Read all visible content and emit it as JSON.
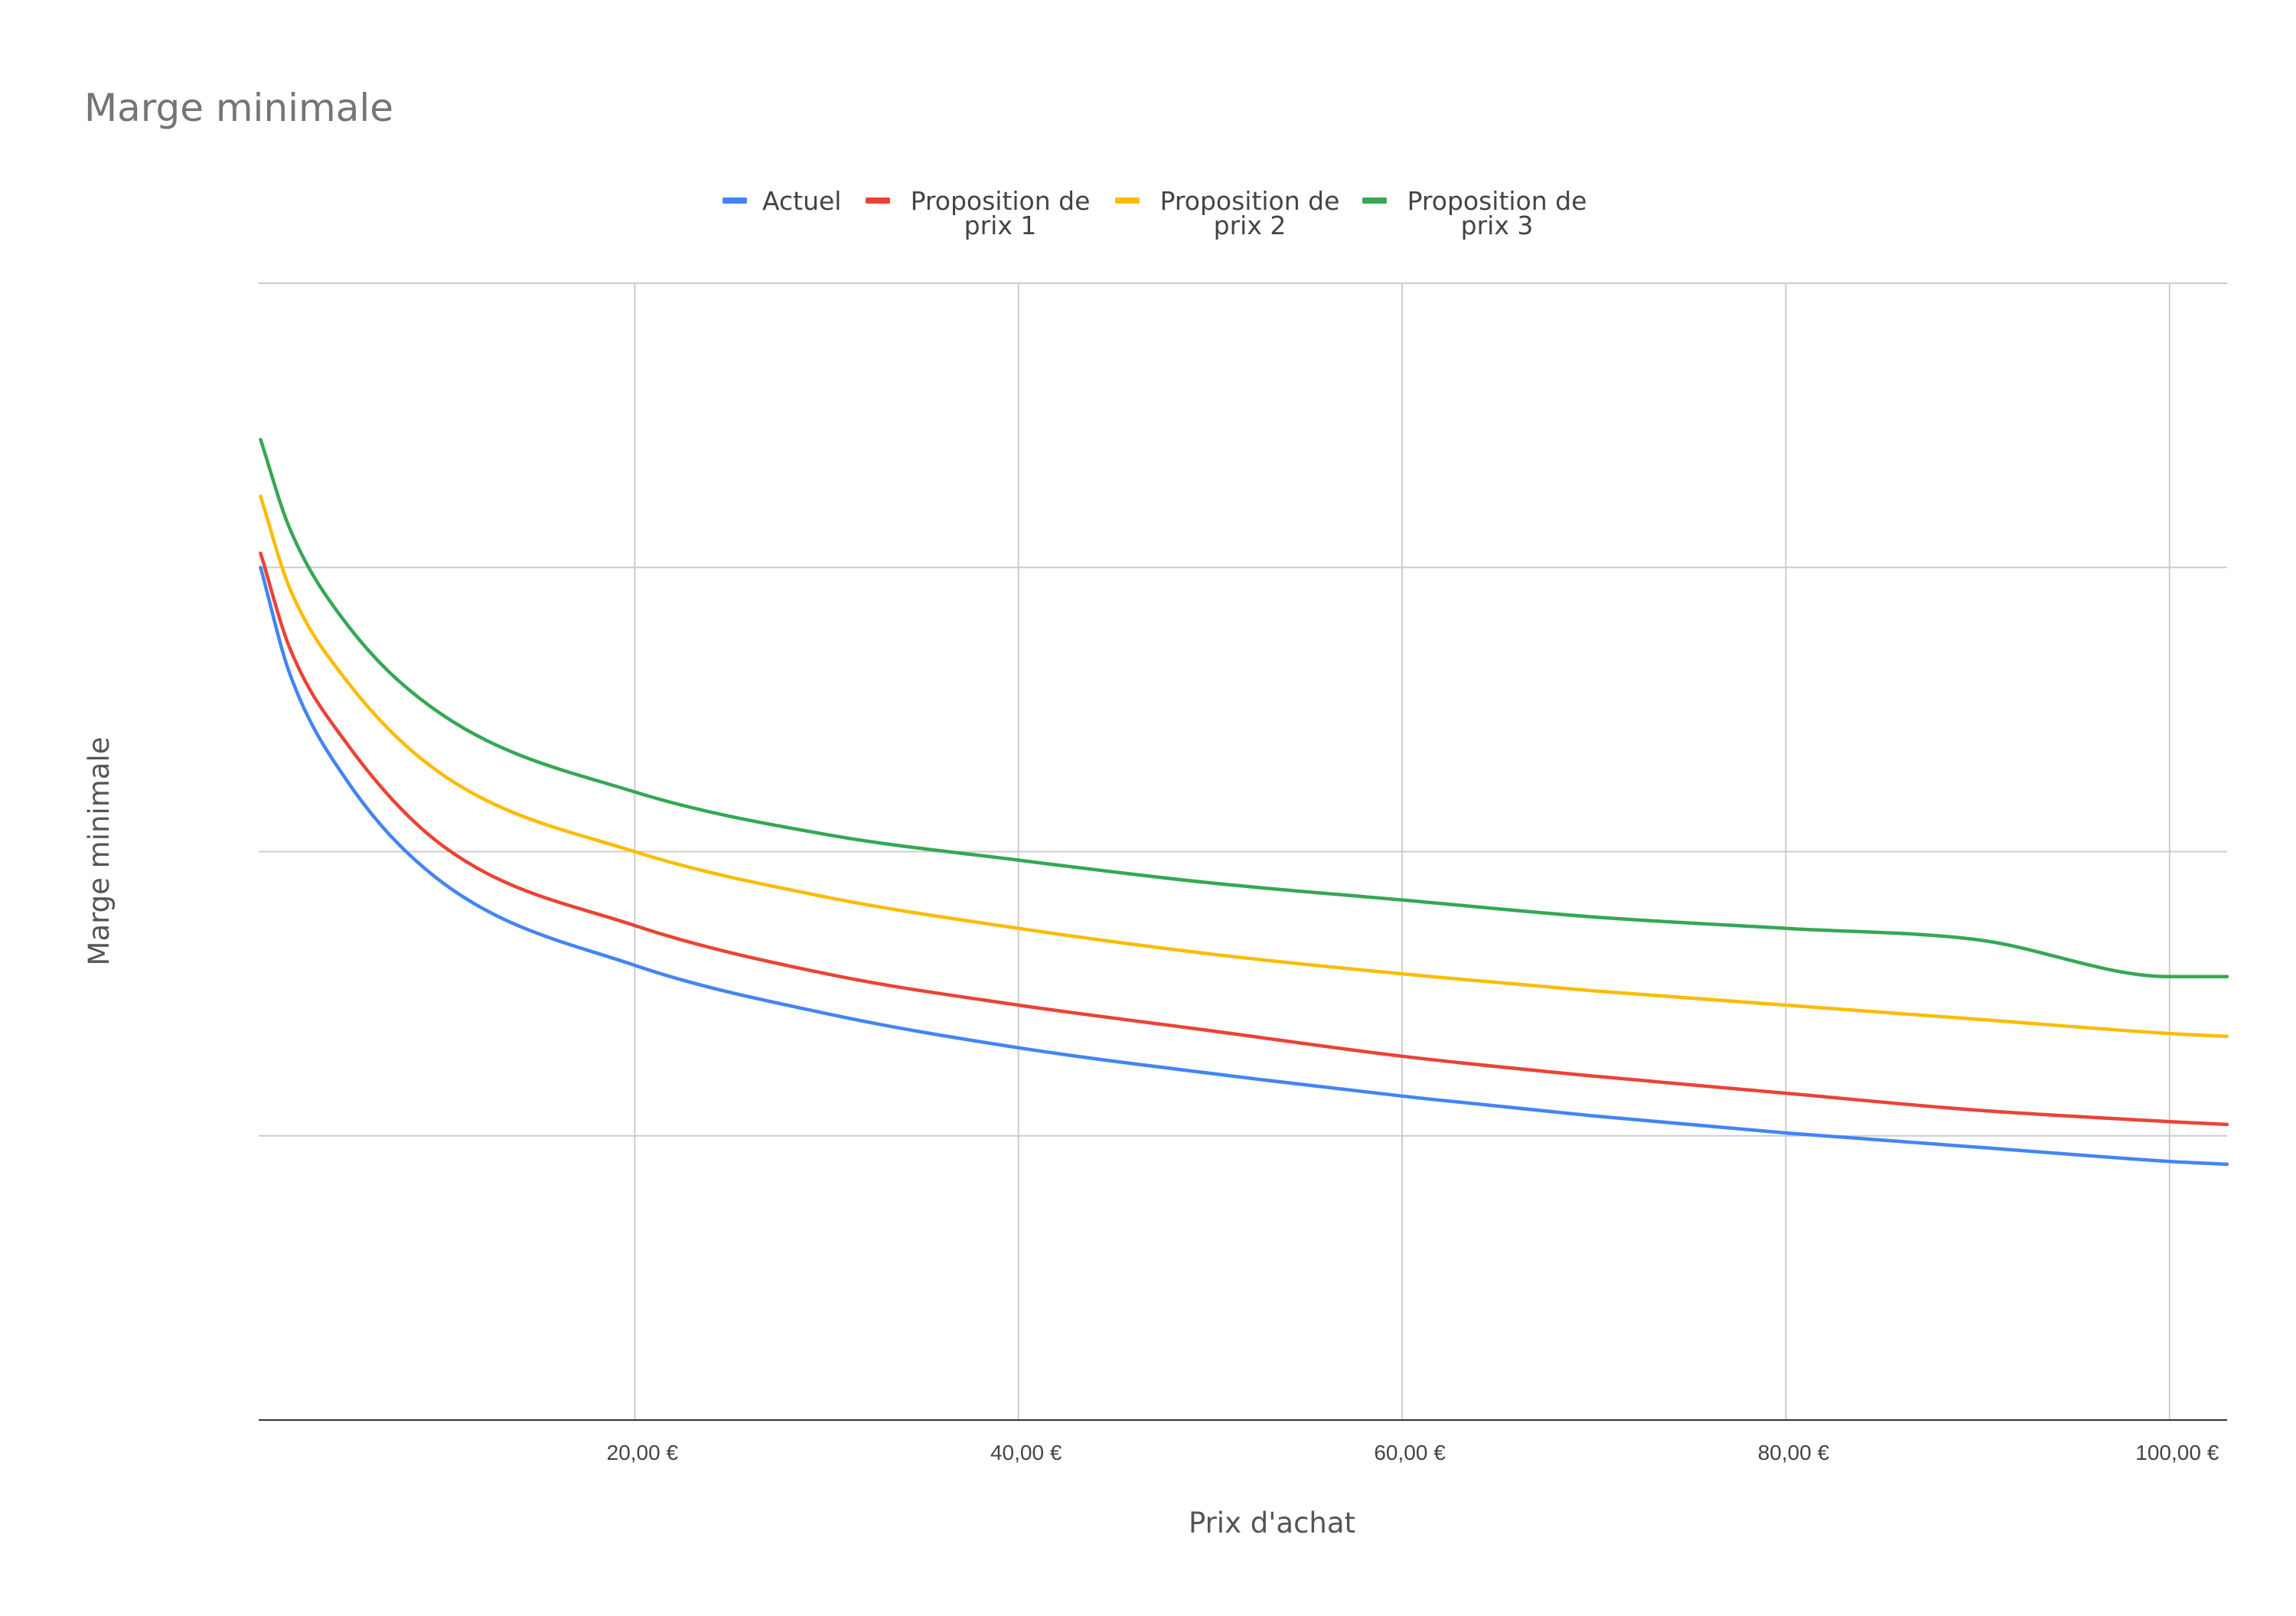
{
  "chart_data": {
    "type": "line",
    "title": "Marge minimale",
    "xlabel": "Prix d'achat",
    "ylabel": "Marge minimale",
    "x_tick_labels": [
      "20,00 €",
      "40,00 €",
      "60,00 €",
      "80,00 €",
      "100,00 €"
    ],
    "x_ticks": [
      20,
      40,
      60,
      80,
      100
    ],
    "xlim": [
      0.4,
      103
    ],
    "ylim": [
      0,
      4
    ],
    "y_tick_labels": [],
    "grid": true,
    "legend_position": "top",
    "series": [
      {
        "name": "Actuel",
        "color": "#4285f4",
        "x": [
          0.5,
          2,
          5,
          10,
          20,
          30,
          40,
          50,
          60,
          70,
          80,
          90,
          100,
          103
        ],
        "y": [
          3.0,
          2.63,
          2.25,
          1.89,
          1.6,
          1.43,
          1.31,
          1.22,
          1.14,
          1.07,
          1.01,
          0.96,
          0.91,
          0.9
        ]
      },
      {
        "name": "Proposition de\nprix 1",
        "color": "#ea4335",
        "x": [
          0.5,
          2,
          5,
          10,
          20,
          30,
          40,
          50,
          60,
          70,
          80,
          90,
          100,
          103
        ],
        "y": [
          3.05,
          2.72,
          2.38,
          2.02,
          1.74,
          1.57,
          1.46,
          1.37,
          1.28,
          1.21,
          1.15,
          1.09,
          1.05,
          1.04
        ]
      },
      {
        "name": "Proposition de\nprix 2",
        "color": "#fbbc04",
        "x": [
          0.5,
          2,
          5,
          10,
          20,
          30,
          40,
          50,
          60,
          70,
          80,
          90,
          100,
          103
        ],
        "y": [
          3.25,
          2.93,
          2.6,
          2.27,
          2.0,
          1.84,
          1.73,
          1.64,
          1.57,
          1.51,
          1.46,
          1.41,
          1.36,
          1.35
        ]
      },
      {
        "name": "Proposition de\nprix 3",
        "color": "#34a853",
        "x": [
          0.5,
          2,
          5,
          10,
          20,
          30,
          40,
          50,
          60,
          70,
          80,
          90,
          100,
          103
        ],
        "y": [
          3.45,
          3.14,
          2.8,
          2.48,
          2.21,
          2.06,
          1.97,
          1.89,
          1.83,
          1.77,
          1.73,
          1.69,
          1.56,
          1.56
        ]
      }
    ]
  }
}
